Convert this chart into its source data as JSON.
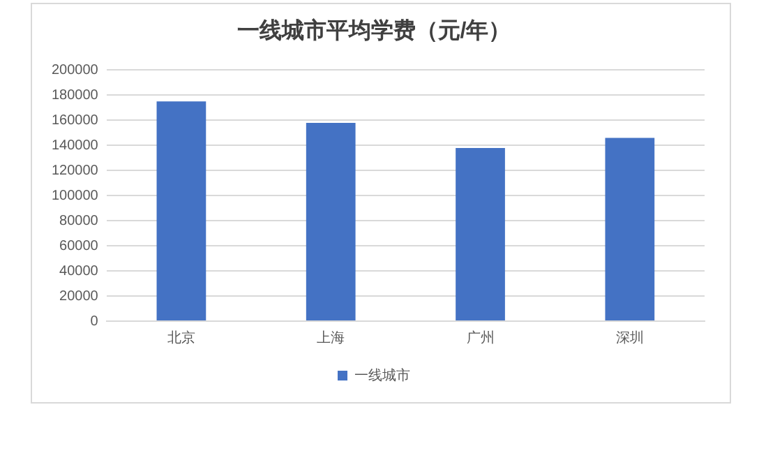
{
  "chart_data": {
    "type": "bar",
    "title": "一线城市平均学费（元/年）",
    "categories": [
      "北京",
      "上海",
      "广州",
      "深圳"
    ],
    "series": [
      {
        "name": "一线城市",
        "color": "#4472c4",
        "values": [
          175000,
          158000,
          138000,
          146000
        ]
      }
    ],
    "ylim": [
      0,
      200000
    ],
    "yticks": [
      0,
      20000,
      40000,
      60000,
      80000,
      100000,
      120000,
      140000,
      160000,
      180000,
      200000
    ],
    "grid": "y",
    "legend": "bottom"
  }
}
